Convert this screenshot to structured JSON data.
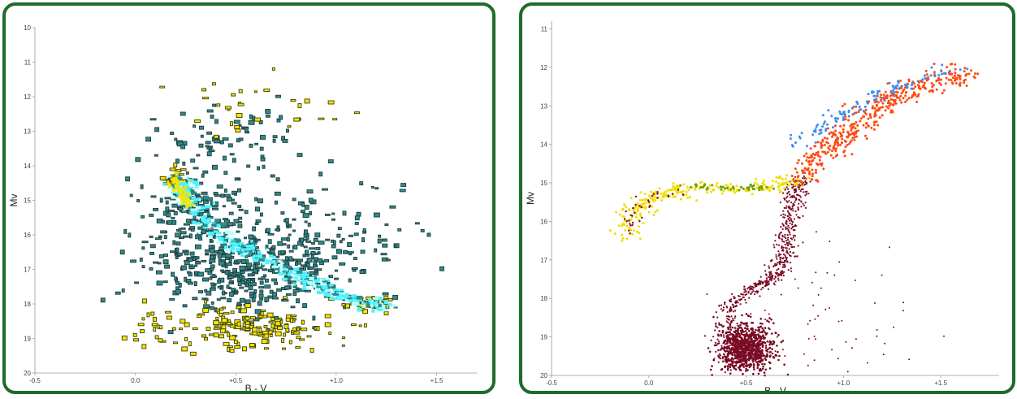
{
  "colors": {
    "frame": "#1f6b2a",
    "background": "#ffffff",
    "left_main": "#2e8b8b",
    "left_edge": "#1f3b3b",
    "left_ridge": "#4ff2ff",
    "left_yellow": "#f2e600",
    "right_hb_yellow": "#f2dd00",
    "right_hb_green": "#6aa000",
    "right_rgb_red": "#ff4a10",
    "right_agb_blue": "#3b8cf0",
    "right_ms": "#7a0a25"
  },
  "chart_data": [
    {
      "type": "scatter",
      "title": "",
      "xlabel": "B - V",
      "ylabel": "Mv",
      "xlim": [
        -0.5,
        1.7
      ],
      "ylim": [
        20,
        10
      ],
      "y_inverted": true,
      "x_ticks": [
        -0.5,
        0.0,
        0.5,
        1.0,
        1.5
      ],
      "x_tick_labels": [
        "-0.5",
        "0.0",
        "+0.5",
        "+1.0",
        "+1.5"
      ],
      "y_ticks": [
        10,
        11,
        12,
        13,
        14,
        15,
        16,
        17,
        18,
        19,
        20
      ],
      "y_tick_labels": [
        "10",
        "11",
        "12",
        "13",
        "14",
        "15",
        "16",
        "17",
        "18",
        "19",
        "20"
      ],
      "grid": false,
      "legend": "none",
      "series": [
        {
          "color": "#2e8b8b",
          "ridge_line": [
            [
              0.2,
              14.3
            ],
            [
              0.25,
              14.8
            ],
            [
              0.32,
              15.5
            ],
            [
              0.45,
              16.1
            ],
            [
              0.6,
              16.6
            ],
            [
              0.8,
              17.2
            ],
            [
              0.95,
              17.6
            ],
            [
              1.1,
              17.9
            ],
            [
              1.25,
              18.1
            ]
          ],
          "clusters": [
            {
              "cx": 0.55,
              "cy": 17.0,
              "sx": 0.45,
              "sy": 1.1,
              "n": 420
            },
            {
              "cx": 0.3,
              "cy": 15.2,
              "sx": 0.25,
              "sy": 1.3,
              "n": 160
            },
            {
              "cx": 0.9,
              "cy": 16.0,
              "sx": 0.55,
              "sy": 1.4,
              "n": 130
            },
            {
              "cx": 0.5,
              "cy": 13.2,
              "sx": 0.35,
              "sy": 0.9,
              "n": 70
            }
          ]
        },
        {
          "color": "#f2e600",
          "clusters": [
            {
              "cx": 0.55,
              "cy": 18.7,
              "sx": 0.45,
              "sy": 0.6,
              "n": 180
            },
            {
              "cx": 0.2,
              "cy": 14.4,
              "sx": 0.05,
              "sy": 0.35,
              "n": 40
            },
            {
              "cx": 0.55,
              "cy": 12.5,
              "sx": 0.35,
              "sy": 0.8,
              "n": 30
            },
            {
              "cx": 1.15,
              "cy": 18.0,
              "sx": 0.12,
              "sy": 0.2,
              "n": 40
            }
          ]
        }
      ]
    },
    {
      "type": "scatter",
      "title": "",
      "xlabel": "B - V",
      "ylabel": "Mv",
      "xlim": [
        -0.5,
        1.8
      ],
      "ylim": [
        20,
        10.8
      ],
      "y_inverted": true,
      "x_ticks": [
        -0.5,
        0.0,
        0.5,
        1.0,
        1.5
      ],
      "x_tick_labels": [
        "-0.5",
        "0.0",
        "+0.5",
        "+1.0",
        "+1.5"
      ],
      "y_ticks": [
        11,
        12,
        13,
        14,
        15,
        16,
        17,
        18,
        19,
        20
      ],
      "y_tick_labels": [
        "11",
        "12",
        "13",
        "14",
        "15",
        "16",
        "17",
        "18",
        "19",
        "20"
      ],
      "grid": false,
      "legend": "none",
      "series": [
        {
          "color": "#7a0a25",
          "branch_line": [
            [
              0.4,
              20.0
            ],
            [
              0.38,
              19.0
            ],
            [
              0.42,
              18.2
            ],
            [
              0.55,
              17.7
            ],
            [
              0.65,
              17.4
            ],
            [
              0.7,
              16.8
            ],
            [
              0.72,
              16.0
            ],
            [
              0.75,
              15.3
            ],
            [
              0.78,
              14.9
            ]
          ],
          "clusters": [
            {
              "cx": 0.5,
              "cy": 19.3,
              "sx": 0.12,
              "sy": 0.55,
              "n": 900
            },
            {
              "cx": 0.9,
              "cy": 18.6,
              "sx": 0.4,
              "sy": 1.0,
              "n": 60
            }
          ]
        },
        {
          "color": "#f2dd00",
          "branch_line": [
            [
              -0.12,
              16.4
            ],
            [
              -0.08,
              15.8
            ],
            [
              0.0,
              15.4
            ],
            [
              0.15,
              15.2
            ],
            [
              0.4,
              15.15
            ],
            [
              0.65,
              15.1
            ],
            [
              0.75,
              14.9
            ]
          ],
          "n": 260
        },
        {
          "color": "#6aa000",
          "branch_line": [
            [
              0.2,
              15.1
            ],
            [
              0.45,
              15.15
            ],
            [
              0.6,
              15.1
            ]
          ],
          "n": 40
        },
        {
          "color": "#ff4a10",
          "branch_line": [
            [
              0.78,
              14.95
            ],
            [
              0.85,
              14.4
            ],
            [
              0.95,
              14.0
            ],
            [
              1.05,
              13.5
            ],
            [
              1.2,
              13.0
            ],
            [
              1.35,
              12.6
            ],
            [
              1.5,
              12.3
            ],
            [
              1.68,
              12.2
            ]
          ],
          "n": 420
        },
        {
          "color": "#3b8cf0",
          "branch_line": [
            [
              0.72,
              14.1
            ],
            [
              0.85,
              13.7
            ],
            [
              0.98,
              13.3
            ],
            [
              1.15,
              12.8
            ],
            [
              1.35,
              12.4
            ],
            [
              1.62,
              11.95
            ]
          ],
          "n": 110
        }
      ]
    }
  ]
}
